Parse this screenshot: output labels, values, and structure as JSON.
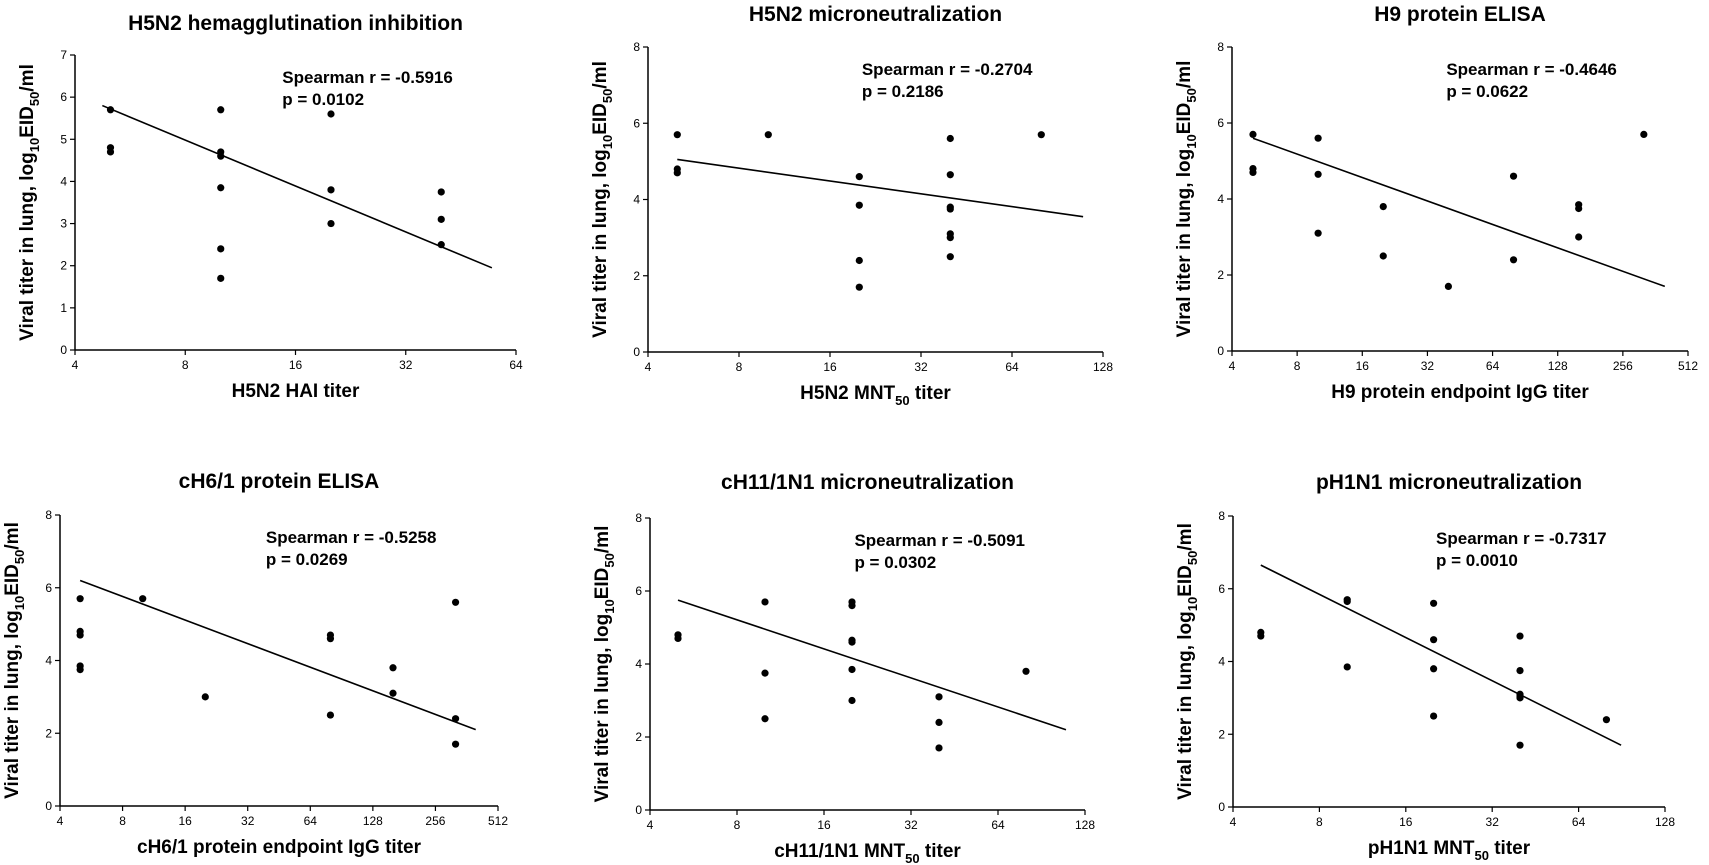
{
  "chart_data": [
    {
      "type": "scatter",
      "title": "H5N2 hemagglutination inhibition",
      "xlabel": {
        "pre": "H5N2 HAI titer",
        "sub": "",
        "post": ""
      },
      "ylabel": "Viral titer in lung, log10EID50/ml",
      "x_scale": "log2",
      "xlim": [
        4,
        64
      ],
      "ylim": [
        0,
        7
      ],
      "xticks": [
        "4",
        "8",
        "16",
        "32",
        "64"
      ],
      "yticks": [
        "0",
        "1",
        "2",
        "3",
        "4",
        "5",
        "6",
        "7"
      ],
      "points": [
        [
          5,
          5.7
        ],
        [
          5,
          4.8
        ],
        [
          5,
          4.7
        ],
        [
          10,
          5.7
        ],
        [
          10,
          4.7
        ],
        [
          10,
          4.6
        ],
        [
          10,
          3.85
        ],
        [
          10,
          2.4
        ],
        [
          10,
          1.7
        ],
        [
          20,
          5.6
        ],
        [
          20,
          3.8
        ],
        [
          20,
          3.0
        ],
        [
          40,
          3.75
        ],
        [
          40,
          3.1
        ],
        [
          40,
          2.5
        ]
      ],
      "fit": {
        "x": [
          4.75,
          55
        ],
        "y": [
          5.8,
          1.95
        ]
      },
      "annotation": [
        "Spearman r = -0.5916",
        "p = 0.0102"
      ]
    },
    {
      "type": "scatter",
      "title": "H5N2 microneutralization",
      "xlabel": {
        "pre": "H5N2 MNT",
        "sub": "50",
        "post": " titer"
      },
      "ylabel": "Viral titer in lung, log10EID50/ml",
      "x_scale": "log2",
      "xlim": [
        4,
        128
      ],
      "ylim": [
        0,
        8
      ],
      "xticks": [
        "4",
        "8",
        "16",
        "32",
        "64",
        "128"
      ],
      "yticks": [
        "0",
        "2",
        "4",
        "6",
        "8"
      ],
      "points": [
        [
          5,
          5.7
        ],
        [
          5,
          4.8
        ],
        [
          5,
          4.7
        ],
        [
          10,
          5.7
        ],
        [
          20,
          4.6
        ],
        [
          20,
          3.85
        ],
        [
          20,
          2.4
        ],
        [
          20,
          1.7
        ],
        [
          40,
          5.6
        ],
        [
          40,
          4.65
        ],
        [
          40,
          3.8
        ],
        [
          40,
          3.75
        ],
        [
          40,
          3.1
        ],
        [
          40,
          3.0
        ],
        [
          40,
          2.5
        ],
        [
          80,
          5.7
        ]
      ],
      "fit": {
        "x": [
          5,
          110
        ],
        "y": [
          5.05,
          3.55
        ]
      },
      "annotation": [
        "Spearman r = -0.2704",
        "p = 0.2186"
      ]
    },
    {
      "type": "scatter",
      "title": "H9 protein ELISA",
      "xlabel": {
        "pre": "H9 protein endpoint IgG titer",
        "sub": "",
        "post": ""
      },
      "ylabel": "Viral titer in lung, log10EID50/ml",
      "x_scale": "log2",
      "xlim": [
        4,
        512
      ],
      "ylim": [
        0,
        8
      ],
      "xticks": [
        "4",
        "8",
        "16",
        "32",
        "64",
        "128",
        "256",
        "512"
      ],
      "yticks": [
        "0",
        "2",
        "4",
        "6",
        "8"
      ],
      "points": [
        [
          5,
          5.7
        ],
        [
          5,
          4.8
        ],
        [
          5,
          4.7
        ],
        [
          10,
          5.6
        ],
        [
          10,
          4.65
        ],
        [
          10,
          3.1
        ],
        [
          20,
          3.8
        ],
        [
          20,
          2.5
        ],
        [
          40,
          1.7
        ],
        [
          80,
          4.6
        ],
        [
          80,
          2.4
        ],
        [
          160,
          3.85
        ],
        [
          160,
          3.75
        ],
        [
          160,
          3.0
        ],
        [
          320,
          5.7
        ]
      ],
      "fit": {
        "x": [
          5,
          400
        ],
        "y": [
          5.6,
          1.7
        ]
      },
      "annotation": [
        "Spearman r = -0.4646",
        "p = 0.0622"
      ]
    },
    {
      "type": "scatter",
      "title": "cH6/1 protein ELISA",
      "xlabel": {
        "pre": "cH6/1 protein endpoint IgG titer",
        "sub": "",
        "post": ""
      },
      "ylabel": "Viral titer in lung, log10EID50/ml",
      "x_scale": "log2",
      "xlim": [
        4,
        512
      ],
      "ylim": [
        0,
        8
      ],
      "xticks": [
        "4",
        "8",
        "16",
        "32",
        "64",
        "128",
        "256",
        "512"
      ],
      "yticks": [
        "0",
        "2",
        "4",
        "6",
        "8"
      ],
      "points": [
        [
          5,
          5.7
        ],
        [
          5,
          4.8
        ],
        [
          5,
          4.7
        ],
        [
          5,
          3.85
        ],
        [
          5,
          3.75
        ],
        [
          10,
          5.7
        ],
        [
          20,
          3.0
        ],
        [
          80,
          4.7
        ],
        [
          80,
          4.6
        ],
        [
          80,
          2.5
        ],
        [
          160,
          3.8
        ],
        [
          160,
          3.1
        ],
        [
          320,
          5.6
        ],
        [
          320,
          2.4
        ],
        [
          320,
          1.7
        ]
      ],
      "fit": {
        "x": [
          5,
          400
        ],
        "y": [
          6.2,
          2.1
        ]
      },
      "annotation": [
        "Spearman r = -0.5258",
        "p = 0.0269"
      ]
    },
    {
      "type": "scatter",
      "title": "cH11/1N1 microneutralization",
      "xlabel": {
        "pre": "cH11/1N1 MNT",
        "sub": "50",
        "post": " titer"
      },
      "ylabel": "Viral titer in lung, log10EID50/ml",
      "x_scale": "log2",
      "xlim": [
        4,
        128
      ],
      "ylim": [
        0,
        8
      ],
      "xticks": [
        "4",
        "8",
        "16",
        "32",
        "64",
        "128"
      ],
      "yticks": [
        "0",
        "2",
        "4",
        "6",
        "8"
      ],
      "points": [
        [
          5,
          4.8
        ],
        [
          5,
          4.7
        ],
        [
          10,
          5.7
        ],
        [
          10,
          3.75
        ],
        [
          10,
          2.5
        ],
        [
          20,
          5.7
        ],
        [
          20,
          5.6
        ],
        [
          20,
          4.65
        ],
        [
          20,
          4.6
        ],
        [
          20,
          3.85
        ],
        [
          20,
          3.0
        ],
        [
          40,
          3.1
        ],
        [
          40,
          2.4
        ],
        [
          40,
          1.7
        ],
        [
          80,
          3.8
        ]
      ],
      "fit": {
        "x": [
          5,
          110
        ],
        "y": [
          5.75,
          2.2
        ]
      },
      "annotation": [
        "Spearman r = -0.5091",
        "p = 0.0302"
      ]
    },
    {
      "type": "scatter",
      "title": "pH1N1 microneutralization",
      "xlabel": {
        "pre": "pH1N1 MNT",
        "sub": "50",
        "post": " titer"
      },
      "ylabel": "Viral titer in lung, log10EID50/ml",
      "x_scale": "log2",
      "xlim": [
        4,
        128
      ],
      "ylim": [
        0,
        8
      ],
      "xticks": [
        "4",
        "8",
        "16",
        "32",
        "64",
        "128"
      ],
      "yticks": [
        "0",
        "2",
        "4",
        "6",
        "8"
      ],
      "points": [
        [
          5,
          4.8
        ],
        [
          5,
          4.7
        ],
        [
          10,
          5.7
        ],
        [
          10,
          5.65
        ],
        [
          10,
          3.85
        ],
        [
          20,
          5.6
        ],
        [
          20,
          4.6
        ],
        [
          20,
          3.8
        ],
        [
          20,
          2.5
        ],
        [
          40,
          4.7
        ],
        [
          40,
          3.75
        ],
        [
          40,
          3.1
        ],
        [
          40,
          3.05
        ],
        [
          40,
          3.0
        ],
        [
          40,
          1.7
        ],
        [
          80,
          2.4
        ]
      ],
      "fit": {
        "x": [
          5,
          90
        ],
        "y": [
          6.65,
          1.7
        ]
      },
      "annotation": [
        "Spearman r = -0.7317",
        "p = 0.0010"
      ]
    }
  ]
}
